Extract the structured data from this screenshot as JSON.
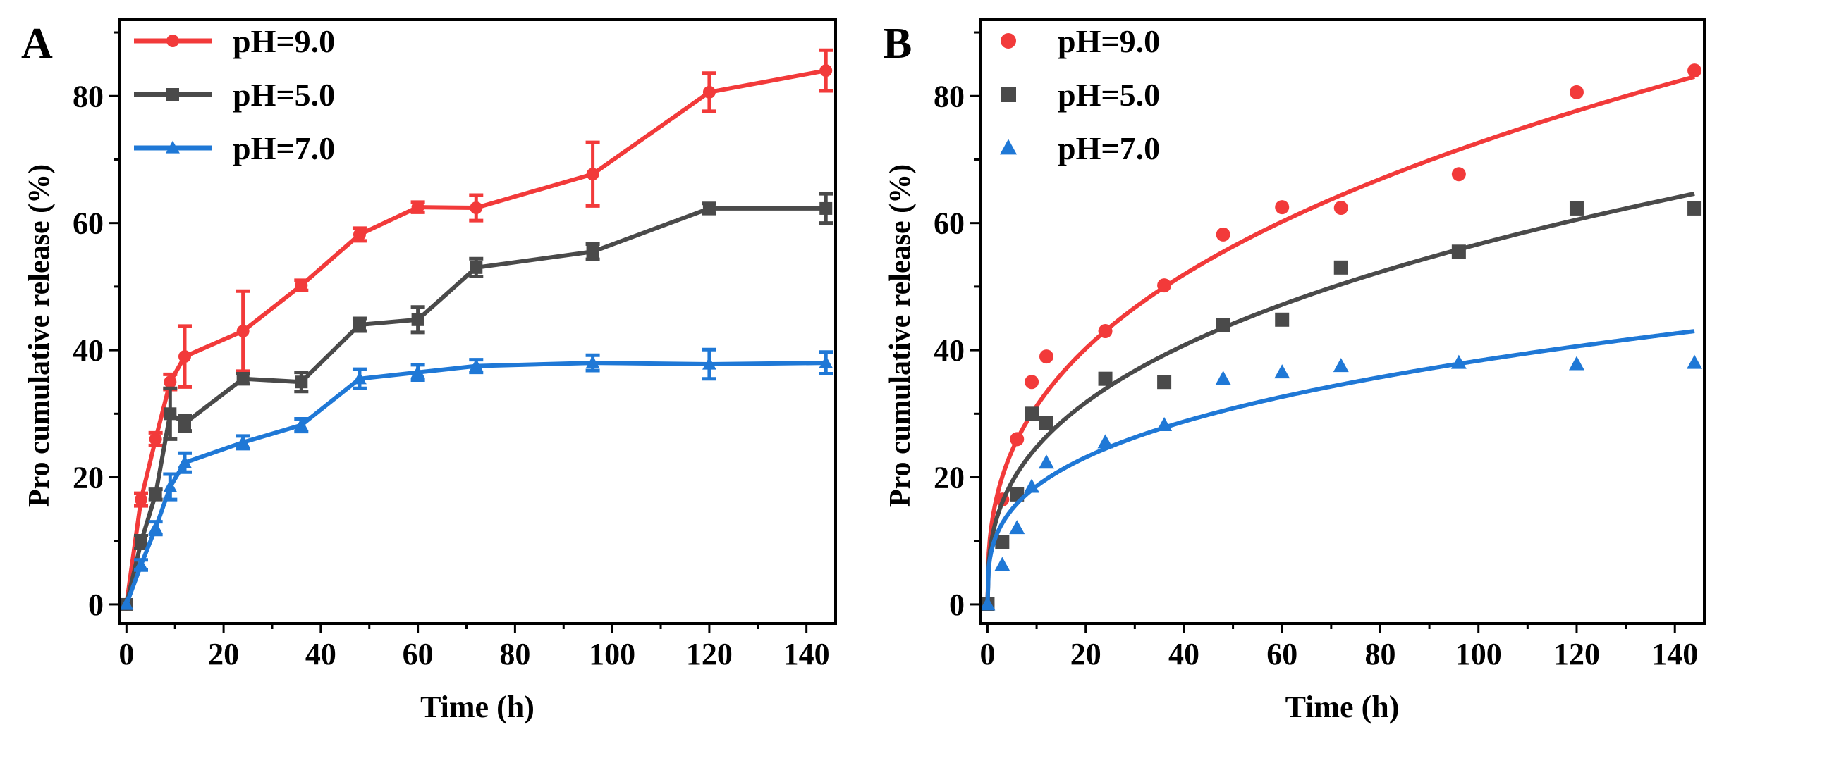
{
  "chart_data": [
    {
      "panel_label": "A",
      "type": "line",
      "xlabel": "Time (h)",
      "ylabel": "Pro cumulative release (%)",
      "xlim": [
        -1.5,
        146
      ],
      "ylim": [
        -3,
        92
      ],
      "x_ticks": [
        "0",
        "20",
        "40",
        "60",
        "80",
        "100",
        "120",
        "140"
      ],
      "y_ticks": [
        "0",
        "20",
        "40",
        "60",
        "80"
      ],
      "legend_position": "top-left",
      "x": [
        0,
        3,
        6,
        9,
        12,
        24,
        36,
        48,
        60,
        72,
        96,
        120,
        144
      ],
      "series": [
        {
          "name": "pH=9.0",
          "color": "#f23a3a",
          "marker": "circle",
          "values": [
            0,
            16.5,
            26,
            35,
            39,
            43,
            50.2,
            58.2,
            62.5,
            62.4,
            67.7,
            80.6,
            84
          ],
          "errors": [
            0,
            1,
            1,
            1.2,
            4.8,
            6.3,
            0.8,
            1,
            0.8,
            2,
            5,
            3,
            3.2
          ]
        },
        {
          "name": "pH=5.0",
          "color": "#4a4a4a",
          "marker": "square",
          "values": [
            0,
            9.8,
            17.3,
            30,
            28.5,
            35.5,
            35,
            44,
            44.8,
            53,
            55.5,
            62.3,
            62.3
          ],
          "errors": [
            0,
            1,
            0.8,
            4,
            1.2,
            0.8,
            1.5,
            1,
            2,
            1.4,
            1.2,
            0.8,
            2.3
          ]
        },
        {
          "name": "pH=7.0",
          "color": "#1f78d6",
          "marker": "triangle",
          "values": [
            0,
            6.2,
            12,
            18.5,
            22.3,
            25.5,
            28.2,
            35.5,
            36.5,
            37.5,
            38,
            37.8,
            38
          ],
          "errors": [
            0,
            0.8,
            1,
            2,
            1.5,
            1,
            1,
            1.5,
            1.2,
            1,
            1.2,
            2.3,
            1.7
          ]
        }
      ]
    },
    {
      "panel_label": "B",
      "type": "scatter",
      "xlabel": "Time (h)",
      "ylabel": "Pro cumulative release (%)",
      "xlim": [
        -1.5,
        146
      ],
      "ylim": [
        -3,
        92
      ],
      "x_ticks": [
        "0",
        "20",
        "40",
        "60",
        "80",
        "100",
        "120",
        "140"
      ],
      "y_ticks": [
        "0",
        "20",
        "40",
        "60",
        "80"
      ],
      "legend_position": "top-left",
      "x": [
        0,
        3,
        6,
        9,
        12,
        24,
        36,
        48,
        60,
        72,
        96,
        120,
        144
      ],
      "series": [
        {
          "name": "pH=9.0",
          "color": "#f23a3a",
          "marker": "circle",
          "values": [
            0,
            16.5,
            26,
            35,
            39,
            43,
            50.2,
            58.2,
            62.5,
            62.4,
            67.7,
            80.6,
            84
          ],
          "fit": {
            "model": "k*t^n",
            "k": 13.4,
            "n": 0.367
          }
        },
        {
          "name": "pH=5.0",
          "color": "#4a4a4a",
          "marker": "square",
          "values": [
            0,
            9.8,
            17.3,
            30,
            28.5,
            35.5,
            35,
            44,
            44.8,
            53,
            55.5,
            62.3,
            62.3
          ],
          "fit": {
            "model": "k*t^n",
            "k": 10.8,
            "n": 0.36
          }
        },
        {
          "name": "pH=7.0",
          "color": "#1f78d6",
          "marker": "triangle",
          "values": [
            0,
            6.2,
            12,
            18.5,
            22.3,
            25.5,
            28.2,
            35.5,
            36.5,
            37.5,
            38,
            37.8,
            38
          ],
          "fit": {
            "model": "k*t^n",
            "k": 9.03,
            "n": 0.314
          }
        }
      ]
    }
  ]
}
